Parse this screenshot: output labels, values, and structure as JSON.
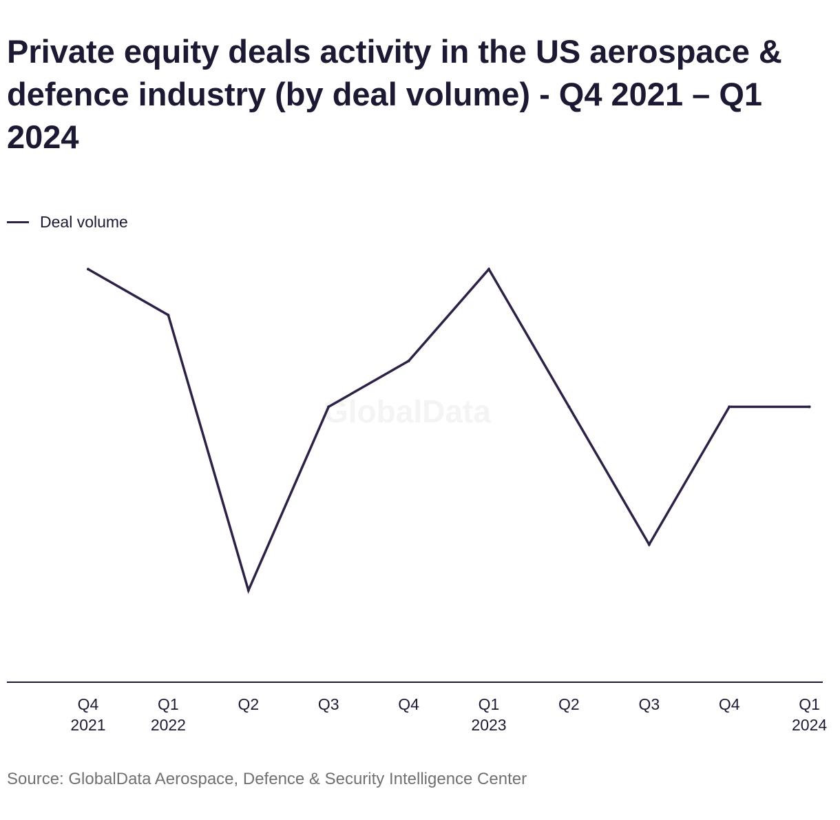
{
  "title": "Private equity deals activity in the US aerospace & defence industry (by deal volume) - Q4 2021 – Q1 2024",
  "legend": {
    "label": "Deal volume"
  },
  "watermark": "GlobalData",
  "source": "Source: GlobalData Aerospace, Defence & Security Intelligence Center",
  "colors": {
    "line": "#2e2146",
    "axis": "#1c1a33",
    "text": "#1c1a33",
    "source": "#707070"
  },
  "chart_data": {
    "type": "line",
    "categories": [
      [
        "Q4",
        "2021"
      ],
      [
        "Q1",
        "2022"
      ],
      [
        "Q2",
        ""
      ],
      [
        "Q3",
        ""
      ],
      [
        "Q4",
        ""
      ],
      [
        "Q1",
        "2023"
      ],
      [
        "Q2",
        ""
      ],
      [
        "Q3",
        ""
      ],
      [
        "Q4",
        ""
      ],
      [
        "Q1",
        "2024"
      ]
    ],
    "series": [
      {
        "name": "Deal volume",
        "values": [
          9,
          8,
          2,
          6,
          7,
          9,
          6,
          3,
          6,
          6
        ]
      }
    ],
    "ylim": [
      0,
      10
    ],
    "grid": false,
    "legend_position": "top-left",
    "y_axis_labels": false
  }
}
